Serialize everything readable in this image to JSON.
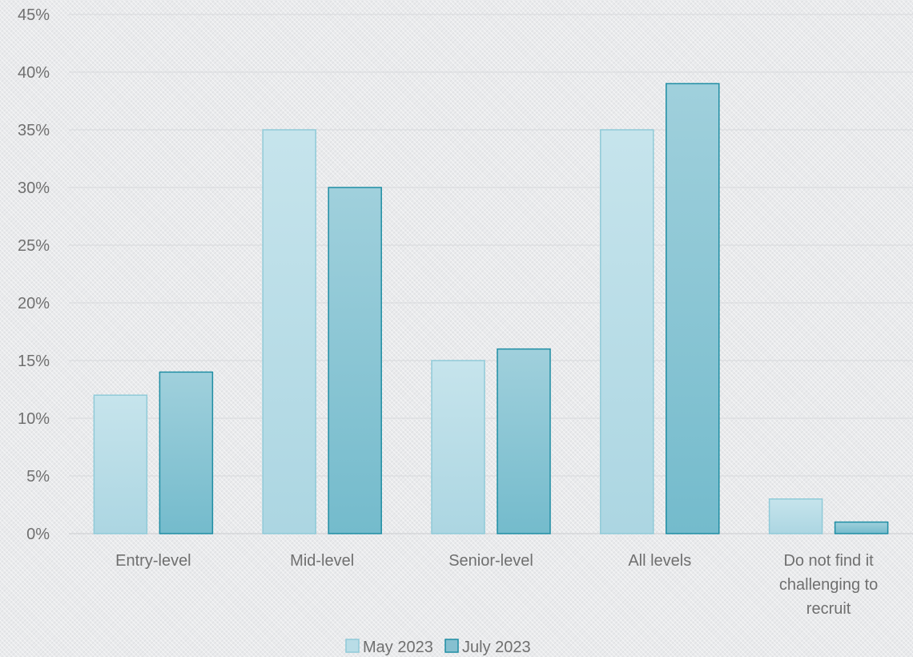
{
  "chart_data": {
    "type": "bar",
    "categories": [
      [
        "Entry-level"
      ],
      [
        "Mid-level"
      ],
      [
        "Senior-level"
      ],
      [
        "All levels"
      ],
      [
        "Do not find it",
        "challenging to",
        "recruit"
      ]
    ],
    "series": [
      {
        "name": "May 2023",
        "values": [
          12,
          35,
          15,
          35,
          3
        ],
        "color": "#b9dde7",
        "stroke": "#8fcad8"
      },
      {
        "name": "July 2023",
        "values": [
          14,
          30,
          16,
          39,
          1
        ],
        "color": "#86c0d0",
        "stroke": "#1e8da3"
      }
    ],
    "ylim": [
      0,
      45
    ],
    "yticks": [
      0,
      5,
      10,
      15,
      20,
      25,
      30,
      35,
      40,
      45
    ],
    "ytick_labels": [
      "0%",
      "5%",
      "10%",
      "15%",
      "20%",
      "25%",
      "30%",
      "35%",
      "40%",
      "45%"
    ],
    "title": "",
    "xlabel": "",
    "ylabel": "",
    "grid": true,
    "legend": "bottom"
  }
}
